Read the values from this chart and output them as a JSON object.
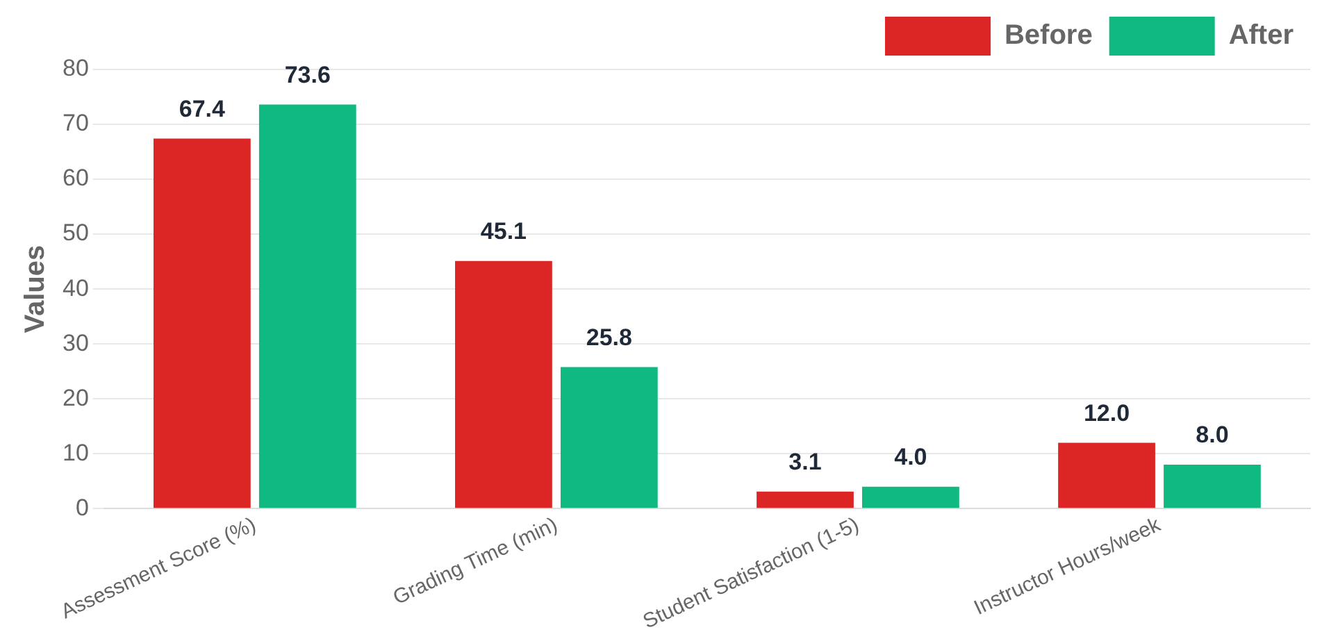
{
  "chart_data": {
    "type": "bar",
    "ylabel": "Values",
    "categories": [
      "Assessment Score (%)",
      "Grading Time (min)",
      "Student Satisfaction (1-5)",
      "Instructor Hours/week"
    ],
    "series": [
      {
        "name": "Before",
        "color": "#dc2626",
        "values": [
          67.4,
          45.1,
          3.1,
          12.0
        ],
        "value_labels": [
          "67.4",
          "45.1",
          "3.1",
          "12.0"
        ]
      },
      {
        "name": "After",
        "color": "#10b981",
        "values": [
          73.6,
          25.8,
          4.0,
          8.0
        ],
        "value_labels": [
          "73.6",
          "25.8",
          "4.0",
          "8.0"
        ]
      }
    ],
    "ylim": [
      0,
      80
    ],
    "yticks": [
      0,
      10,
      20,
      30,
      40,
      50,
      60,
      70,
      80
    ],
    "grid": "y",
    "legend": "top right"
  }
}
